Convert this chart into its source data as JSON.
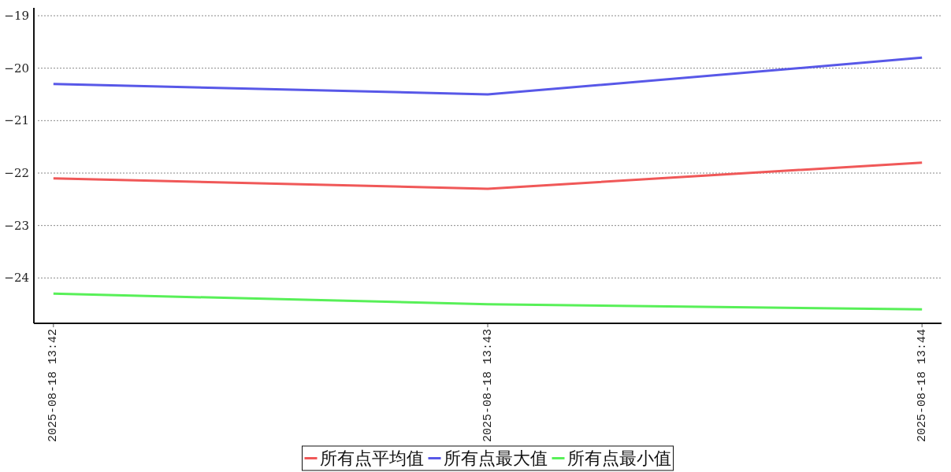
{
  "chart_data": {
    "type": "line",
    "categories": [
      "2025-08-18 13:42",
      "2025-08-18 13:43",
      "2025-08-18 13:44"
    ],
    "series": [
      {
        "name": "所有点平均值",
        "color": "#f05858",
        "values": [
          -22.1,
          -22.3,
          -21.8
        ]
      },
      {
        "name": "所有点最大值",
        "color": "#5858e8",
        "values": [
          -20.3,
          -20.5,
          -19.8
        ]
      },
      {
        "name": "所有点最小值",
        "color": "#58f058",
        "values": [
          -24.3,
          -24.5,
          -24.6
        ]
      }
    ],
    "ylim": [
      -24.85,
      -18.85
    ],
    "yticks": [
      {
        "value": -24,
        "label": "−24"
      },
      {
        "value": -23,
        "label": "−23"
      },
      {
        "value": -22,
        "label": "−22"
      },
      {
        "value": -21,
        "label": "−21"
      },
      {
        "value": -20,
        "label": "−20"
      },
      {
        "value": -19,
        "label": "−19"
      }
    ],
    "grid": "y",
    "legend": "bottom"
  }
}
